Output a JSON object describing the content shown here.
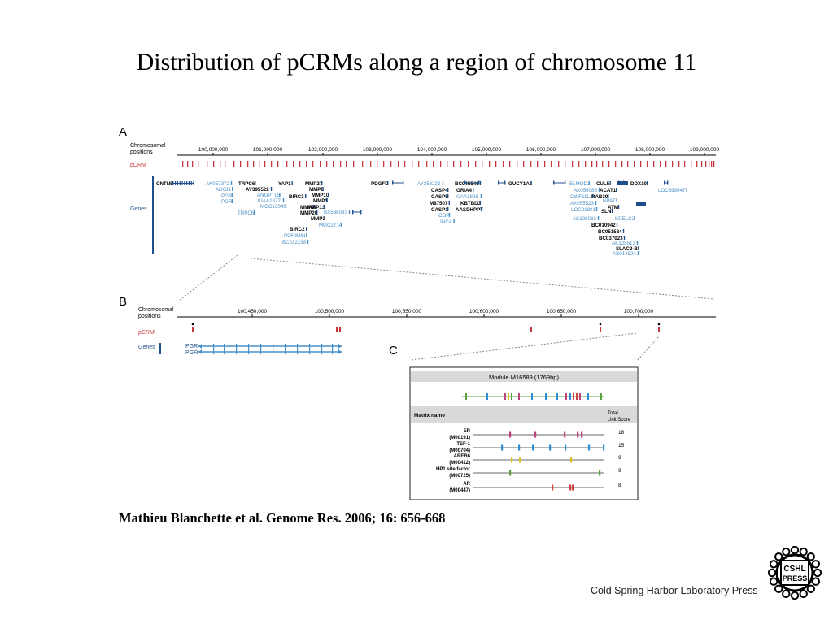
{
  "slide": {
    "title": "Distribution of pCRMs along a region of chromosome 11",
    "citation": "Mathieu Blanchette et al. Genome Res. 2006; 16: 656-668",
    "publisher": "Cold Spring Harbor Laboratory Press",
    "logo_text": [
      "CSHL",
      "PRESS"
    ]
  },
  "colors": {
    "gene_blue": "#1f4e8c",
    "light_blue": "#4a90c8",
    "pcrm_red": "#c8373a",
    "panel_gray": "#d9d9d9",
    "dotted": "#888888"
  },
  "panel_a": {
    "label": "A",
    "row_labels": {
      "chrom": [
        "Chromosomal",
        "positions"
      ],
      "pcrm": "pCRM",
      "genes": "Genes"
    },
    "ticks": [
      "100,000,000",
      "101,000,000",
      "102,000,000",
      "103,000,000",
      "104,000,000",
      "105,000,000",
      "106,000,000",
      "107,000,000",
      "108,000,000",
      "109,000,000"
    ],
    "gene_labels": [
      {
        "text": "CNTN5",
        "dark": true
      },
      {
        "text": "AK057372",
        "dark": false
      },
      {
        "text": "AD031",
        "dark": false
      },
      {
        "text": "PGR",
        "dark": false
      },
      {
        "text": "PGR",
        "dark": false
      },
      {
        "text": "TRPC6",
        "dark": true
      },
      {
        "text": "AY395522",
        "dark": true
      },
      {
        "text": "ANGPTL5",
        "dark": false
      },
      {
        "text": "KIAA1377",
        "dark": false
      },
      {
        "text": "MGC13040",
        "dark": false
      },
      {
        "text": "TRPC6",
        "dark": false
      },
      {
        "text": "YAP1",
        "dark": true
      },
      {
        "text": "BIRC3",
        "dark": true
      },
      {
        "text": "BIRC2",
        "dark": true
      },
      {
        "text": "PORIMIN",
        "dark": false
      },
      {
        "text": "BC032298",
        "dark": false
      },
      {
        "text": "MMP27",
        "dark": true
      },
      {
        "text": "MMP8",
        "dark": true
      },
      {
        "text": "MMP10",
        "dark": true
      },
      {
        "text": "MMP1",
        "dark": true
      },
      {
        "text": "MMP7",
        "dark": true
      },
      {
        "text": "MMP13",
        "dark": true
      },
      {
        "text": "MMP20",
        "dark": true
      },
      {
        "text": "MMP3",
        "dark": true
      },
      {
        "text": "BX538093",
        "dark": false
      },
      {
        "text": "MGC2714",
        "dark": false
      },
      {
        "text": "PDGFD",
        "dark": true
      },
      {
        "text": "AY358222",
        "dark": false
      },
      {
        "text": "CASP4",
        "dark": true
      },
      {
        "text": "CASP5",
        "dark": true
      },
      {
        "text": "M87507",
        "dark": true
      },
      {
        "text": "CASP1",
        "dark": true
      },
      {
        "text": "COP",
        "dark": false
      },
      {
        "text": "INCA",
        "dark": false
      },
      {
        "text": "BC045546",
        "dark": true
      },
      {
        "text": "GRIA4",
        "dark": true
      },
      {
        "text": "KIAA1826",
        "dark": false
      },
      {
        "text": "KBTBD3",
        "dark": true
      },
      {
        "text": "AASDHPPT",
        "dark": true
      },
      {
        "text": "GUCY1A2",
        "dark": true
      },
      {
        "text": "ELMOD1",
        "dark": false
      },
      {
        "text": "AK056086",
        "dark": false
      },
      {
        "text": "CWF19L2",
        "dark": false
      },
      {
        "text": "AK055523",
        "dark": false
      },
      {
        "text": "LOC91801",
        "dark": false
      },
      {
        "text": "SLN",
        "dark": true
      },
      {
        "text": "AK128082",
        "dark": false
      },
      {
        "text": "CUL5",
        "dark": true
      },
      {
        "text": "ACAT1",
        "dark": true
      },
      {
        "text": "RAB39",
        "dark": true
      },
      {
        "text": "NPAT",
        "dark": false
      },
      {
        "text": "ATM",
        "dark": true
      },
      {
        "text": "KDELC2",
        "dark": false
      },
      {
        "text": "BC010942",
        "dark": true
      },
      {
        "text": "BC051584",
        "dark": true
      },
      {
        "text": "BC037023",
        "dark": true
      },
      {
        "text": "AK125513",
        "dark": false
      },
      {
        "text": "SLAC2-B",
        "dark": true
      },
      {
        "text": "AB014524",
        "dark": false
      },
      {
        "text": "DDX10",
        "dark": true
      },
      {
        "text": "LOC399947",
        "dark": false
      }
    ]
  },
  "panel_b": {
    "label": "B",
    "row_labels": {
      "chrom": [
        "Chromosomal",
        "positions"
      ],
      "pcrm": "pCRM",
      "genes": "Genes"
    },
    "ticks": [
      "100,450,000",
      "100,500,000",
      "100,550,000",
      "100,600,000",
      "100,650,000",
      "100,700,000"
    ],
    "gene_labels": [
      "PGR",
      "PGR"
    ]
  },
  "panel_c": {
    "label": "C",
    "module_title": "Module M16589 (1769bp)",
    "header_matrix": "Matrix name",
    "header_score": [
      "Total",
      "Unit Score"
    ],
    "rows": [
      {
        "name": "ER",
        "id": "(M00191)",
        "score": "18",
        "color": "#c0407a"
      },
      {
        "name": "TEF-1",
        "id": "(M00704)",
        "score": "15",
        "color": "#2a8fd6"
      },
      {
        "name": "AREB6",
        "id": "(M00412)",
        "score": "9",
        "color": "#e0c020"
      },
      {
        "name": "HP1 site factor",
        "id": "(M00725)",
        "score": "9",
        "color": "#5aa040"
      },
      {
        "name": "AR",
        "id": "(M00447)",
        "score": "8",
        "color": "#d04040"
      }
    ]
  }
}
